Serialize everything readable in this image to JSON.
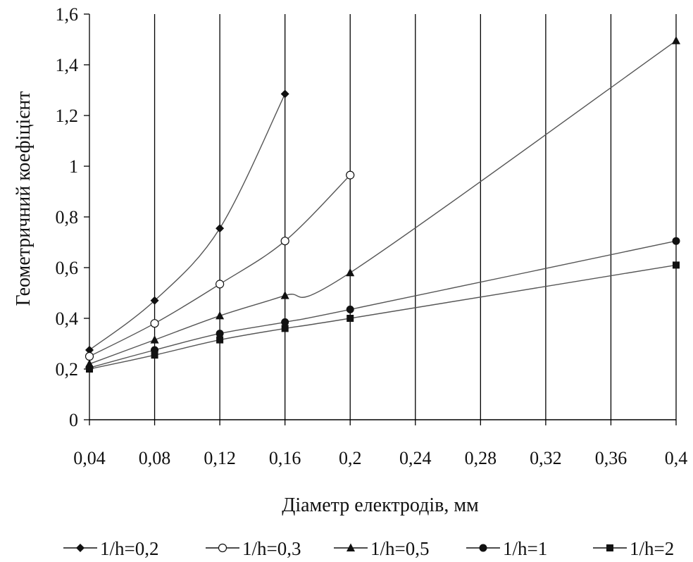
{
  "chart_data": {
    "type": "line",
    "title": "",
    "xlabel": "Діаметр електродів, мм",
    "ylabel": "Геометричний коефіцієнт",
    "x_categories": [
      "0,04",
      "0,08",
      "0,12",
      "0,16",
      "0,2",
      "0,24",
      "0,28",
      "0,32",
      "0,36",
      "0,4"
    ],
    "y_ticks": [
      {
        "value": 0,
        "label": "0"
      },
      {
        "value": 0.2,
        "label": "0,2"
      },
      {
        "value": 0.4,
        "label": "0,4"
      },
      {
        "value": 0.6,
        "label": "0,6"
      },
      {
        "value": 0.8,
        "label": "0,8"
      },
      {
        "value": 1.0,
        "label": "1"
      },
      {
        "value": 1.2,
        "label": "1,2"
      },
      {
        "value": 1.4,
        "label": "1,4"
      },
      {
        "value": 1.6,
        "label": "1,6"
      }
    ],
    "ylim": [
      0,
      1.6
    ],
    "grid": {
      "vertical": true,
      "horizontal": false
    },
    "legend_position": "bottom",
    "smooth": true,
    "series": [
      {
        "name": "1/h=0,2",
        "marker": "diamond",
        "points": [
          [
            0.04,
            0.275
          ],
          [
            0.08,
            0.47
          ],
          [
            0.12,
            0.755
          ],
          [
            0.16,
            1.285
          ]
        ]
      },
      {
        "name": "1/h=0,3",
        "marker": "circle-open",
        "points": [
          [
            0.04,
            0.25
          ],
          [
            0.08,
            0.38
          ],
          [
            0.12,
            0.535
          ],
          [
            0.16,
            0.705
          ],
          [
            0.2,
            0.965
          ]
        ]
      },
      {
        "name": "1/h=0,5",
        "marker": "triangle",
        "points": [
          [
            0.04,
            0.22
          ],
          [
            0.08,
            0.315
          ],
          [
            0.12,
            0.41
          ],
          [
            0.16,
            0.49
          ],
          [
            0.2,
            0.58
          ],
          [
            0.4,
            1.495
          ]
        ]
      },
      {
        "name": "1/h=1",
        "marker": "circle",
        "points": [
          [
            0.04,
            0.205
          ],
          [
            0.08,
            0.275
          ],
          [
            0.12,
            0.34
          ],
          [
            0.16,
            0.385
          ],
          [
            0.2,
            0.435
          ],
          [
            0.4,
            0.705
          ]
        ]
      },
      {
        "name": "1/h=2",
        "marker": "square",
        "points": [
          [
            0.04,
            0.2
          ],
          [
            0.08,
            0.255
          ],
          [
            0.12,
            0.315
          ],
          [
            0.16,
            0.36
          ],
          [
            0.2,
            0.4
          ],
          [
            0.4,
            0.61
          ]
        ]
      }
    ],
    "colors": {
      "line": "#555555",
      "marker": "#111111",
      "grid": "#000000",
      "axis": "#000000"
    }
  }
}
